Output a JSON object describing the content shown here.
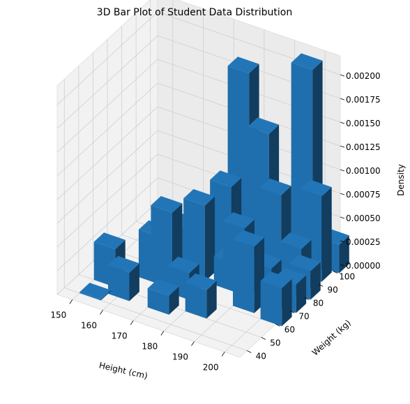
{
  "chart_data": {
    "type": "bar3d",
    "title": "3D Bar Plot of Student Data Distribution",
    "xlabel": "Height (cm)",
    "ylabel": "Weight (kg)",
    "zlabel": "Density",
    "xlim": [
      145,
      205
    ],
    "ylim": [
      35,
      105
    ],
    "zlim": [
      0,
      0.0022
    ],
    "grid": true,
    "bar_color": "#1f77b4",
    "x_ticks": [
      "150",
      "160",
      "170",
      "180",
      "190",
      "200"
    ],
    "y_ticks": [
      "40",
      "50",
      "60",
      "70",
      "80",
      "90",
      "100"
    ],
    "z_ticks": [
      "0.00000",
      "0.00025",
      "0.00050",
      "0.00075",
      "0.00100",
      "0.00125",
      "0.00150",
      "0.00175",
      "0.00200"
    ],
    "bars": [
      {
        "x": 150,
        "y": 40,
        "dx": 7,
        "dy": 7,
        "z": 0
      },
      {
        "x": 150,
        "y": 50,
        "dx": 7,
        "dy": 7,
        "z": 0.0004
      },
      {
        "x": 157,
        "y": 45,
        "dx": 7,
        "dy": 7,
        "z": 0.0003
      },
      {
        "x": 160,
        "y": 60,
        "dx": 7,
        "dy": 7,
        "z": 0.0005
      },
      {
        "x": 164,
        "y": 60,
        "dx": 7,
        "dy": 7,
        "z": 0.0008
      },
      {
        "x": 164,
        "y": 70,
        "dx": 7,
        "dy": 7,
        "z": 0.0005
      },
      {
        "x": 170,
        "y": 45,
        "dx": 7,
        "dy": 7,
        "z": 0.0002
      },
      {
        "x": 170,
        "y": 70,
        "dx": 7,
        "dy": 7,
        "z": 0.0008
      },
      {
        "x": 171,
        "y": 57,
        "dx": 7,
        "dy": 7,
        "z": 0.00028
      },
      {
        "x": 174,
        "y": 80,
        "dx": 7,
        "dy": 7,
        "z": 0.0009
      },
      {
        "x": 177,
        "y": 86,
        "dx": 7,
        "dy": 7,
        "z": 0.00205
      },
      {
        "x": 180,
        "y": 50,
        "dx": 7,
        "dy": 7,
        "z": 0.0003
      },
      {
        "x": 180,
        "y": 70,
        "dx": 7,
        "dy": 7,
        "z": 0.0003
      },
      {
        "x": 183,
        "y": 70,
        "dx": 7,
        "dy": 7,
        "z": 0.0007
      },
      {
        "x": 184,
        "y": 85,
        "dx": 7,
        "dy": 7,
        "z": 0.0015
      },
      {
        "x": 188,
        "y": 85,
        "dx": 7,
        "dy": 7,
        "z": 0.0009
      },
      {
        "x": 190,
        "y": 74,
        "dx": 7,
        "dy": 7,
        "z": 0.0003
      },
      {
        "x": 190,
        "y": 62,
        "dx": 7,
        "dy": 7,
        "z": 0.0007
      },
      {
        "x": 195,
        "y": 92,
        "dx": 7,
        "dy": 7,
        "z": 0.0022
      },
      {
        "x": 197,
        "y": 80,
        "dx": 7,
        "dy": 7,
        "z": 0.0005
      },
      {
        "x": 198,
        "y": 92,
        "dx": 7,
        "dy": 7,
        "z": 0.0009
      },
      {
        "x": 200,
        "y": 60,
        "dx": 7,
        "dy": 7,
        "z": 0.0004
      },
      {
        "x": 200,
        "y": 70,
        "dx": 7,
        "dy": 7,
        "z": 0.0003
      },
      {
        "x": 200,
        "y": 80,
        "dx": 7,
        "dy": 7,
        "z": 0.0003
      },
      {
        "x": 200,
        "y": 100,
        "dx": 7,
        "dy": 7,
        "z": 0.0003
      }
    ]
  }
}
